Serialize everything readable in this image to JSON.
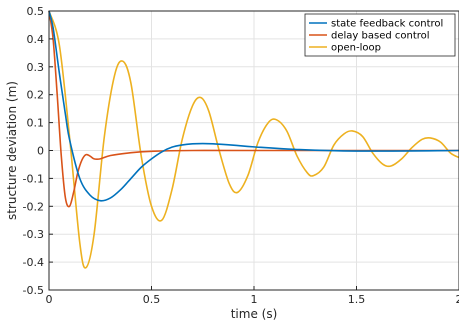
{
  "chart_data": {
    "type": "line",
    "xlabel": "time (s)",
    "ylabel": "structure deviation (m)",
    "xlim": [
      0,
      2
    ],
    "ylim": [
      -0.5,
      0.5
    ],
    "xticks": [
      0,
      0.5,
      1,
      1.5,
      2
    ],
    "xtick_labels": [
      "0",
      "0.5",
      "1",
      "1.5",
      "2"
    ],
    "yticks": [
      -0.5,
      -0.4,
      -0.3,
      -0.2,
      -0.1,
      0,
      0.1,
      0.2,
      0.3,
      0.4,
      0.5
    ],
    "ytick_labels": [
      "-0.5",
      "-0.4",
      "-0.3",
      "-0.2",
      "-0.1",
      "0",
      "0.1",
      "0.2",
      "0.3",
      "0.4",
      "0.5"
    ],
    "grid": true,
    "legend_position": "top-right",
    "series": [
      {
        "name": "state feedback control",
        "color": "#0072BD",
        "x": [
          0,
          0.02,
          0.05,
          0.08,
          0.1,
          0.15,
          0.2,
          0.25,
          0.3,
          0.35,
          0.4,
          0.45,
          0.5,
          0.55,
          0.6,
          0.65,
          0.7,
          0.75,
          0.8,
          0.9,
          1.0,
          1.2,
          1.5,
          2.0
        ],
        "y": [
          0.5,
          0.44,
          0.28,
          0.13,
          0.04,
          -0.1,
          -0.16,
          -0.18,
          -0.17,
          -0.14,
          -0.1,
          -0.06,
          -0.03,
          -0.005,
          0.012,
          0.02,
          0.024,
          0.025,
          0.024,
          0.019,
          0.013,
          0.004,
          -0.002,
          0
        ]
      },
      {
        "name": "delay based control",
        "color": "#D95319",
        "x": [
          0,
          0.02,
          0.04,
          0.06,
          0.08,
          0.1,
          0.12,
          0.14,
          0.16,
          0.18,
          0.2,
          0.22,
          0.25,
          0.3,
          0.4,
          0.5,
          0.7,
          1.0,
          2.0
        ],
        "y": [
          0.5,
          0.4,
          0.2,
          -0.02,
          -0.17,
          -0.2,
          -0.15,
          -0.08,
          -0.035,
          -0.015,
          -0.02,
          -0.03,
          -0.03,
          -0.018,
          -0.008,
          -0.003,
          0,
          0,
          0
        ]
      },
      {
        "name": "open-loop",
        "color": "#EDB120",
        "x": [
          0,
          0.05,
          0.1,
          0.15,
          0.18,
          0.22,
          0.27,
          0.32,
          0.36,
          0.4,
          0.45,
          0.5,
          0.55,
          0.6,
          0.65,
          0.7,
          0.74,
          0.78,
          0.83,
          0.88,
          0.92,
          0.97,
          1.02,
          1.07,
          1.11,
          1.16,
          1.21,
          1.26,
          1.29,
          1.34,
          1.39,
          1.44,
          1.48,
          1.53,
          1.58,
          1.63,
          1.67,
          1.72,
          1.77,
          1.82,
          1.86,
          1.91,
          1.96,
          2.0
        ],
        "y": [
          0.5,
          0.38,
          0.05,
          -0.33,
          -0.42,
          -0.3,
          0.05,
          0.27,
          0.32,
          0.24,
          -0.02,
          -0.2,
          -0.25,
          -0.14,
          0.04,
          0.16,
          0.19,
          0.14,
          0.0,
          -0.12,
          -0.15,
          -0.09,
          0.03,
          0.1,
          0.11,
          0.07,
          -0.02,
          -0.08,
          -0.09,
          -0.06,
          0.02,
          0.06,
          0.07,
          0.05,
          -0.01,
          -0.05,
          -0.055,
          -0.03,
          0.01,
          0.04,
          0.045,
          0.03,
          -0.01,
          -0.025
        ]
      }
    ]
  }
}
